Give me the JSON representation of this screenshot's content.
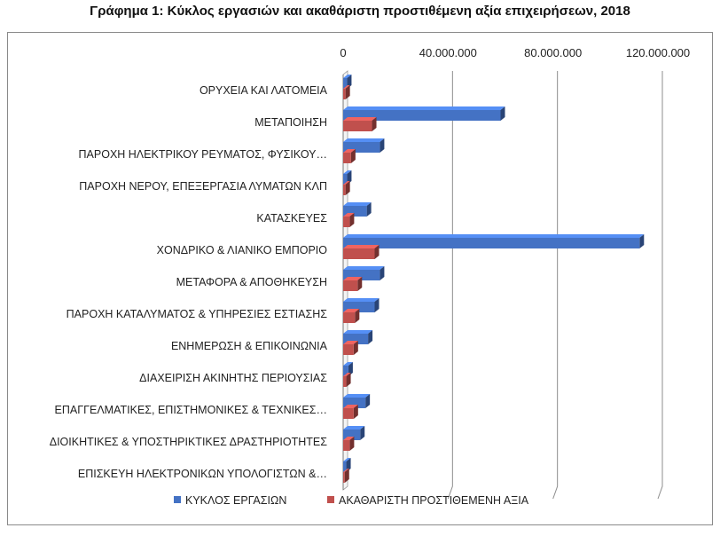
{
  "title": "Γράφημα 1: Κύκλος εργασιών και ακαθάριστη προστιθέμενη αξία επιχειρήσεων, 2018",
  "chart_data": {
    "type": "bar",
    "orientation": "horizontal",
    "style": "3d",
    "title": "Γράφημα 1: Κύκλος εργασιών και ακαθάριστη προστιθέμενη αξία επιχειρήσεων, 2018",
    "xlim": [
      0,
      120000000
    ],
    "xticks": [
      0,
      40000000,
      80000000,
      120000000
    ],
    "xtick_labels": [
      "0",
      "40.000.000",
      "80.000.000",
      "120.000.000"
    ],
    "x_axis_position": "top",
    "gridlines": true,
    "legend_position": "bottom",
    "categories": [
      "ΟΡΥΧΕΙΑ ΚΑΙ ΛΑΤΟΜΕΙΑ",
      "ΜΕΤΑΠΟΙΗΣΗ",
      "ΠΑΡΟΧΗ ΗΛΕΚΤΡΙΚΟΥ ΡΕΥΜΑΤΟΣ, ΦΥΣΙΚΟΥ…",
      "ΠΑΡΟΧΗ ΝΕΡΟΥ,  ΕΠΕΞΕΡΓΑΣΙΑ ΛΥΜΑΤΩΝ ΚΛΠ",
      "ΚΑΤΑΣΚΕΥΕΣ",
      "ΧΟΝΔΡΙΚΟ & ΛΙΑΝΙΚΟ ΕΜΠΟΡΙΟ",
      "ΜΕΤΑΦΟΡΑ & ΑΠΟΘΗΚΕΥΣΗ",
      "ΠΑΡΟΧΗ ΚΑΤΑΛΥΜΑΤΟΣ & ΥΠΗΡΕΣΙΕΣ ΕΣΤΙΑΣΗΣ",
      "ΕΝΗΜΕΡΩΣΗ & ΕΠΙΚΟΙΝΩΝΙΑ",
      "ΔΙΑΧΕΙΡΙΣΗ ΑΚΙΝΗΤΗΣ ΠΕΡΙΟΥΣΙΑΣ",
      "ΕΠΑΓΓΕΛΜΑΤΙΚΕΣ, ΕΠΙΣΤΗΜΟΝΙΚΕΣ & ΤΕΧΝΙΚΕΣ…",
      "ΔΙΟΙΚΗΤΙΚΕΣ & ΥΠΟΣΤΗΡΙΚΤΙΚΕΣ ΔΡΑΣΤΗΡΙΟΤΗΤΕΣ",
      "ΕΠΙΣΚΕΥΗ ΗΛΕΚΤΡΟΝΙΚΩΝ ΥΠΟΛΟΓΙΣΤΩΝ &…"
    ],
    "series": [
      {
        "name": "ΚΥΚΛΟΣ ΕΡΓΑΣΙΩΝ",
        "color": "#4472C4",
        "values": [
          1500000,
          60000000,
          14000000,
          1500000,
          9000000,
          113000000,
          14000000,
          12000000,
          9500000,
          2000000,
          8500000,
          6500000,
          1200000
        ]
      },
      {
        "name": "ΑΚΑΘΑΡΙΣΤΗ ΠΡΟΣΤΙΘΕΜΕΝΗ ΑΞΙΑ",
        "color": "#C0504D",
        "values": [
          900000,
          11000000,
          3000000,
          900000,
          2500000,
          12000000,
          5500000,
          4500000,
          4000000,
          1200000,
          4000000,
          2500000,
          600000
        ]
      }
    ]
  }
}
